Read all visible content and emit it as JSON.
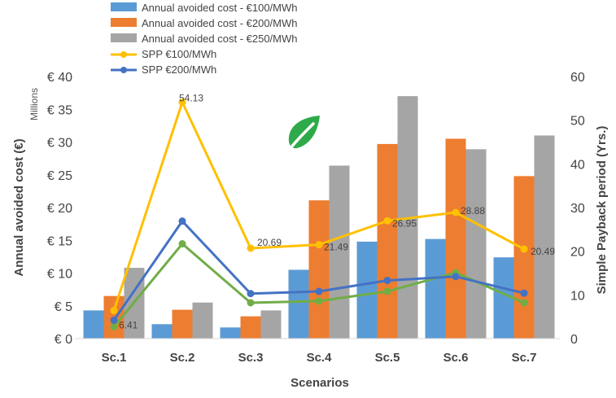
{
  "chart_data": {
    "type": "bar",
    "title": "",
    "xlabel": "Scenarios",
    "ylabel": "Annual avoided cost (€)",
    "y2label": "Simple Payback period (Yrs.)",
    "yunits": "Millions",
    "categories": [
      "Sc.1",
      "Sc.2",
      "Sc.3",
      "Sc.4",
      "Sc.5",
      "Sc.6",
      "Sc.7"
    ],
    "ylim": [
      0,
      40
    ],
    "y2lim": [
      0,
      60
    ],
    "yticks": [
      "€ 0",
      "€ 5",
      "€ 10",
      "€ 15",
      "€ 20",
      "€ 25",
      "€ 30",
      "€ 35",
      "€ 40"
    ],
    "y2ticks": [
      "0",
      "10",
      "20",
      "30",
      "40",
      "50",
      "60"
    ],
    "grid": false,
    "legend_position": "top",
    "bar_series": [
      {
        "name": "Annual avoided cost - €100/MWh",
        "color": "#5b9bd5",
        "values": [
          4.3,
          2.2,
          1.7,
          10.5,
          14.8,
          15.2,
          12.4
        ]
      },
      {
        "name": "Annual avoided cost - €200/MWh",
        "color": "#ed7d31",
        "values": [
          6.5,
          4.4,
          3.4,
          21.1,
          29.7,
          30.5,
          24.8
        ]
      },
      {
        "name": "Annual avoided cost - €250/MWh",
        "color": "#a5a5a5",
        "values": [
          10.8,
          5.5,
          4.3,
          26.4,
          37.0,
          28.9,
          31.0
        ]
      }
    ],
    "line_series": [
      {
        "name": "SPP €100/MWh",
        "color": "#ffc000",
        "axis": "right",
        "values": [
          6.41,
          54.13,
          20.69,
          21.49,
          26.95,
          28.88,
          20.49
        ],
        "in_legend": true
      },
      {
        "name": "SPP €200/MWh",
        "color": "#4472c4",
        "axis": "right",
        "values": [
          4.2,
          26.9,
          10.3,
          10.8,
          13.3,
          14.2,
          10.4
        ],
        "in_legend": true
      },
      {
        "name": "",
        "color": "#70ad47",
        "axis": "right",
        "values": [
          2.7,
          21.7,
          8.2,
          8.6,
          10.8,
          15.1,
          8.2
        ],
        "in_legend": false
      }
    ],
    "annotations": [
      {
        "text": "6.41",
        "series": 0,
        "index": 0
      },
      {
        "text": "54.13",
        "series": 0,
        "index": 1
      },
      {
        "text": "20.69",
        "series": 0,
        "index": 2
      },
      {
        "text": "21.49",
        "series": 0,
        "index": 3
      },
      {
        "text": "26.95",
        "series": 0,
        "index": 4
      },
      {
        "text": "28.88",
        "series": 0,
        "index": 5
      },
      {
        "text": "20.49",
        "series": 0,
        "index": 6
      }
    ],
    "icon": {
      "name": "leaf-icon",
      "color": "#2eaa4a"
    }
  }
}
